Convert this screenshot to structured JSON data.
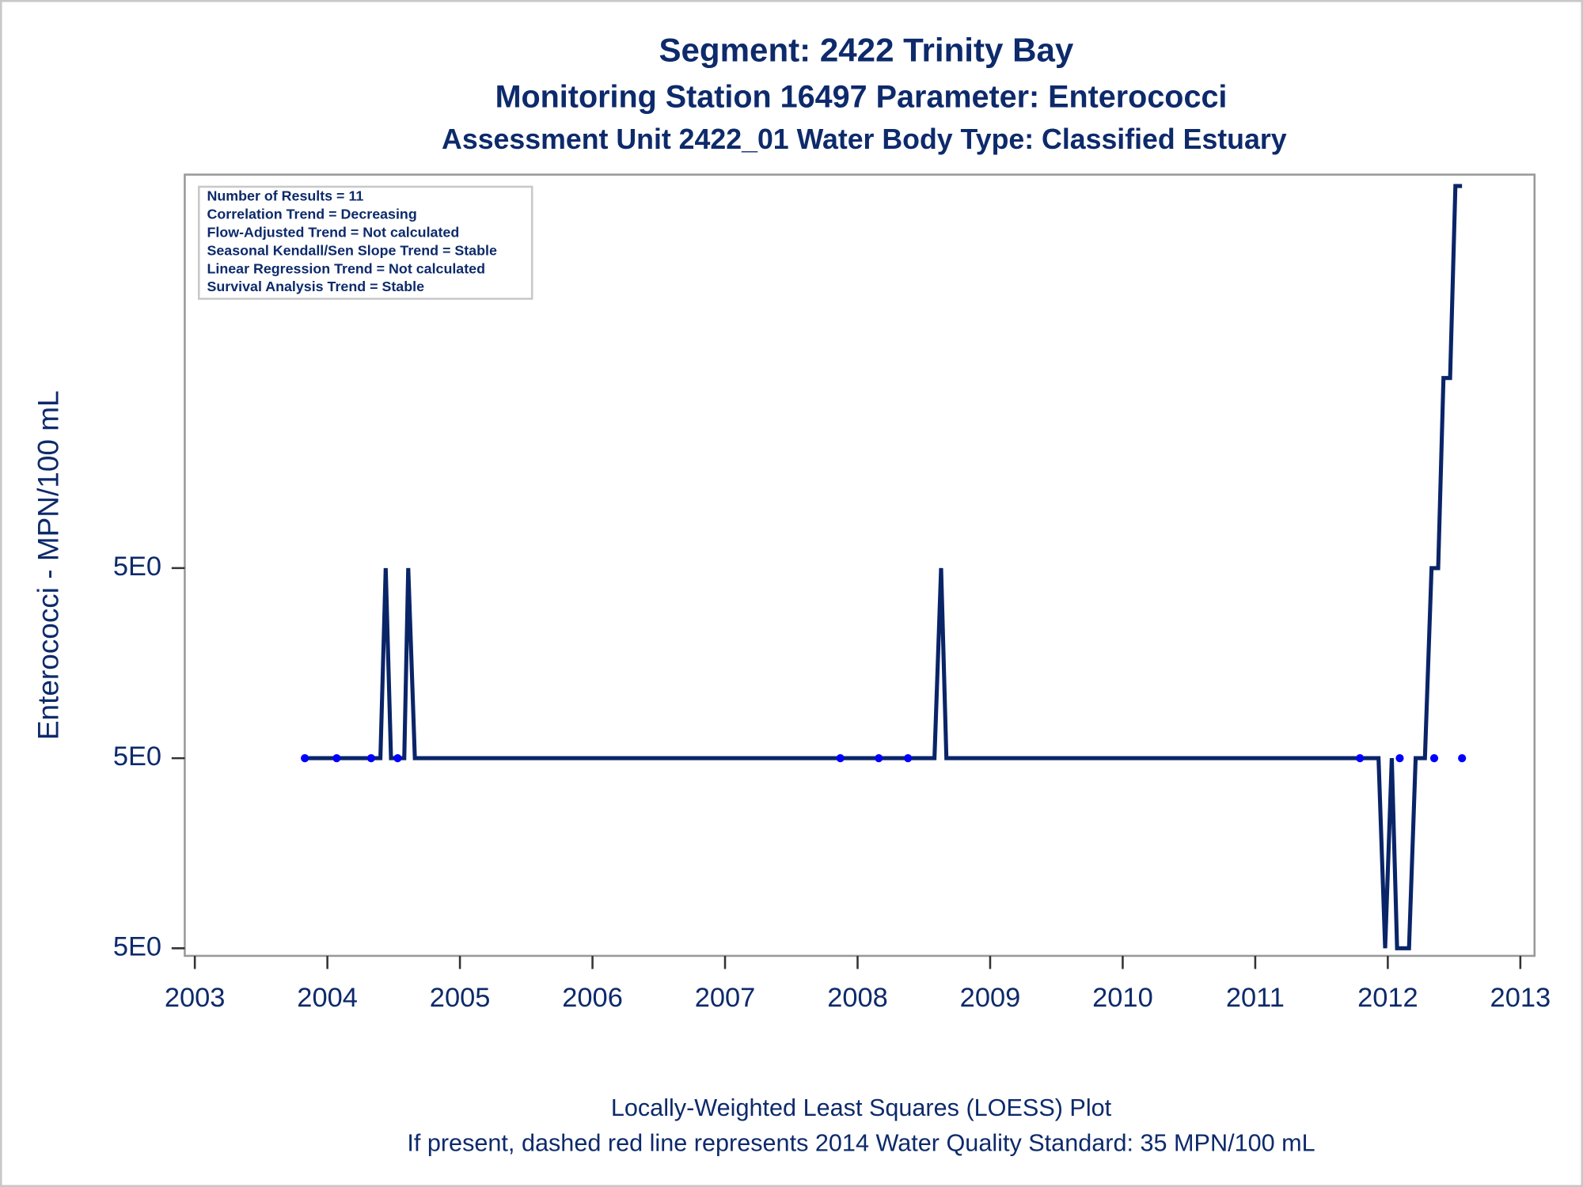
{
  "chart_data": {
    "type": "scatter",
    "title": "Segment: 2422  Trinity Bay",
    "subtitle": "Monitoring Station 16497 Parameter: Enterococci",
    "subtitle2": "Assessment Unit 2422_01   Water Body Type: Classified Estuary",
    "ylabel": "Enterococci - MPN/100 mL",
    "annotations": [
      "Number of Results = 11",
      "Correlation Trend = Decreasing",
      "Flow-Adjusted Trend = Not calculated",
      "Seasonal Kendall/Sen Slope Trend = Stable",
      "Linear Regression Trend = Not calculated",
      "Survival Analysis Trend = Stable"
    ],
    "footnotes": [
      "Locally-Weighted Least Squares (LOESS) Plot",
      "If present, dashed red line represents 2014 Water Quality Standard: 35 MPN/100 mL"
    ],
    "xlim": [
      2002.924,
      2013.107
    ],
    "xticks": [
      2003,
      2004,
      2005,
      2006,
      2007,
      2008,
      2009,
      2010,
      2011,
      2012,
      2013
    ],
    "ylim": [
      4.99896,
      5.00307
    ],
    "yticks": [
      {
        "value": 4.999,
        "label": "5E0"
      },
      {
        "value": 5.0,
        "label": "5E0"
      },
      {
        "value": 5.001,
        "label": "5E0"
      }
    ],
    "series": [
      {
        "type": "scatter",
        "color": "#0000ff",
        "x": [
          2003.83,
          2004.07,
          2004.33,
          2004.53,
          2007.87,
          2008.16,
          2008.38,
          2011.79,
          2012.09,
          2012.35,
          2012.56
        ],
        "values": [
          5,
          5,
          5,
          5,
          5,
          5,
          5,
          5,
          5,
          5,
          5
        ]
      },
      {
        "type": "line",
        "color": "#0a2468",
        "x": [
          2003.83,
          2004.4,
          2004.44,
          2004.48,
          2004.58,
          2004.61,
          2004.66,
          2008.58,
          2008.63,
          2008.67,
          2011.93,
          2011.98,
          2012.03,
          2012.07,
          2012.16,
          2012.21,
          2012.28,
          2012.33,
          2012.38,
          2012.42,
          2012.47,
          2012.51,
          2012.56
        ],
        "values": [
          5.0,
          5.0,
          5.001,
          5.0,
          5.0,
          5.001,
          5.0,
          5.0,
          5.001,
          5.0,
          5.0,
          4.999,
          5.0,
          4.999,
          4.999,
          5.0,
          5.0,
          5.001,
          5.001,
          5.002,
          5.002,
          5.00301,
          5.00301
        ]
      }
    ]
  }
}
